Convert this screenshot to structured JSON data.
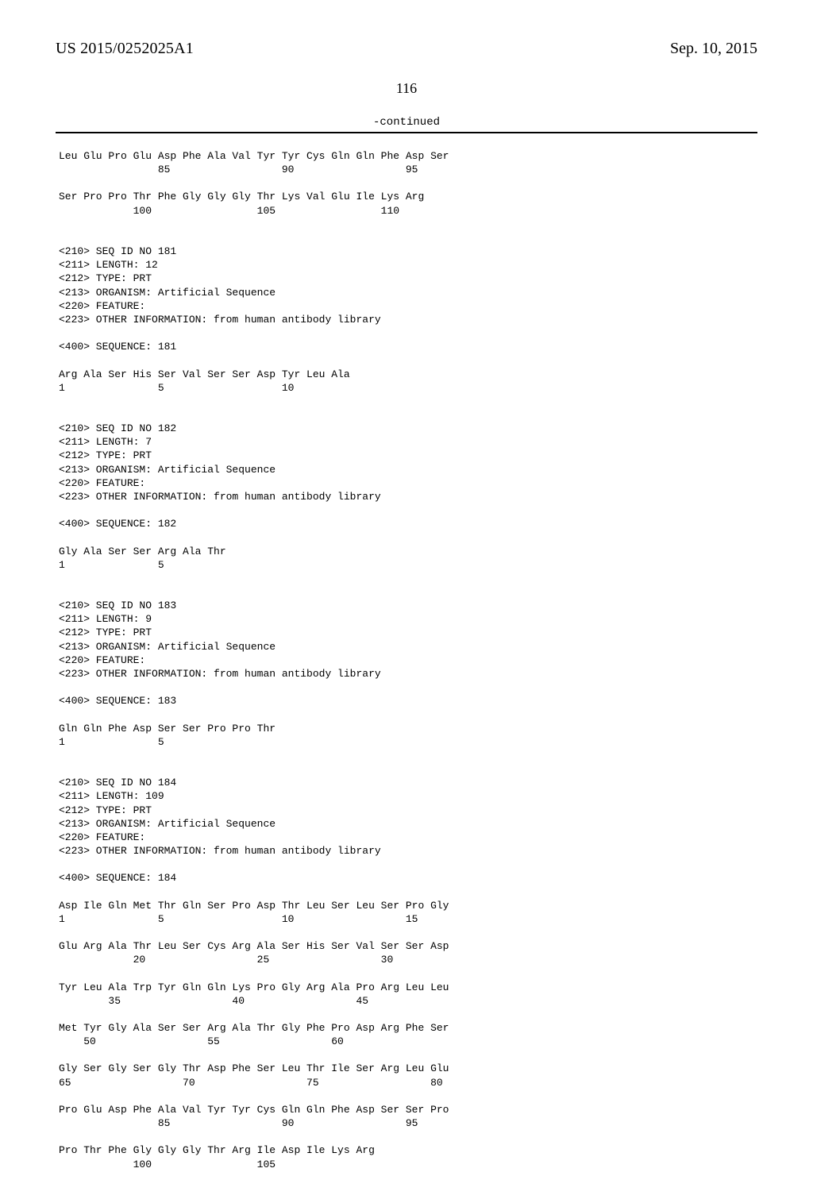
{
  "header": {
    "pub_number": "US 2015/0252025A1",
    "pub_date": "Sep. 10, 2015"
  },
  "page_number": "116",
  "continued_label": "-continued",
  "sequence_text": "Leu Glu Pro Glu Asp Phe Ala Val Tyr Tyr Cys Gln Gln Phe Asp Ser\n                85                  90                  95\n\nSer Pro Pro Thr Phe Gly Gly Gly Thr Lys Val Glu Ile Lys Arg\n            100                 105                 110\n\n\n<210> SEQ ID NO 181\n<211> LENGTH: 12\n<212> TYPE: PRT\n<213> ORGANISM: Artificial Sequence\n<220> FEATURE:\n<223> OTHER INFORMATION: from human antibody library\n\n<400> SEQUENCE: 181\n\nArg Ala Ser His Ser Val Ser Ser Asp Tyr Leu Ala\n1               5                   10\n\n\n<210> SEQ ID NO 182\n<211> LENGTH: 7\n<212> TYPE: PRT\n<213> ORGANISM: Artificial Sequence\n<220> FEATURE:\n<223> OTHER INFORMATION: from human antibody library\n\n<400> SEQUENCE: 182\n\nGly Ala Ser Ser Arg Ala Thr\n1               5\n\n\n<210> SEQ ID NO 183\n<211> LENGTH: 9\n<212> TYPE: PRT\n<213> ORGANISM: Artificial Sequence\n<220> FEATURE:\n<223> OTHER INFORMATION: from human antibody library\n\n<400> SEQUENCE: 183\n\nGln Gln Phe Asp Ser Ser Pro Pro Thr\n1               5\n\n\n<210> SEQ ID NO 184\n<211> LENGTH: 109\n<212> TYPE: PRT\n<213> ORGANISM: Artificial Sequence\n<220> FEATURE:\n<223> OTHER INFORMATION: from human antibody library\n\n<400> SEQUENCE: 184\n\nAsp Ile Gln Met Thr Gln Ser Pro Asp Thr Leu Ser Leu Ser Pro Gly\n1               5                   10                  15\n\nGlu Arg Ala Thr Leu Ser Cys Arg Ala Ser His Ser Val Ser Ser Asp\n            20                  25                  30\n\nTyr Leu Ala Trp Tyr Gln Gln Lys Pro Gly Arg Ala Pro Arg Leu Leu\n        35                  40                  45\n\nMet Tyr Gly Ala Ser Ser Arg Ala Thr Gly Phe Pro Asp Arg Phe Ser\n    50                  55                  60\n\nGly Ser Gly Ser Gly Thr Asp Phe Ser Leu Thr Ile Ser Arg Leu Glu\n65                  70                  75                  80\n\nPro Glu Asp Phe Ala Val Tyr Tyr Cys Gln Gln Phe Asp Ser Ser Pro\n                85                  90                  95\n\nPro Thr Phe Gly Gly Gly Thr Arg Ile Asp Ile Lys Arg\n            100                 105"
}
